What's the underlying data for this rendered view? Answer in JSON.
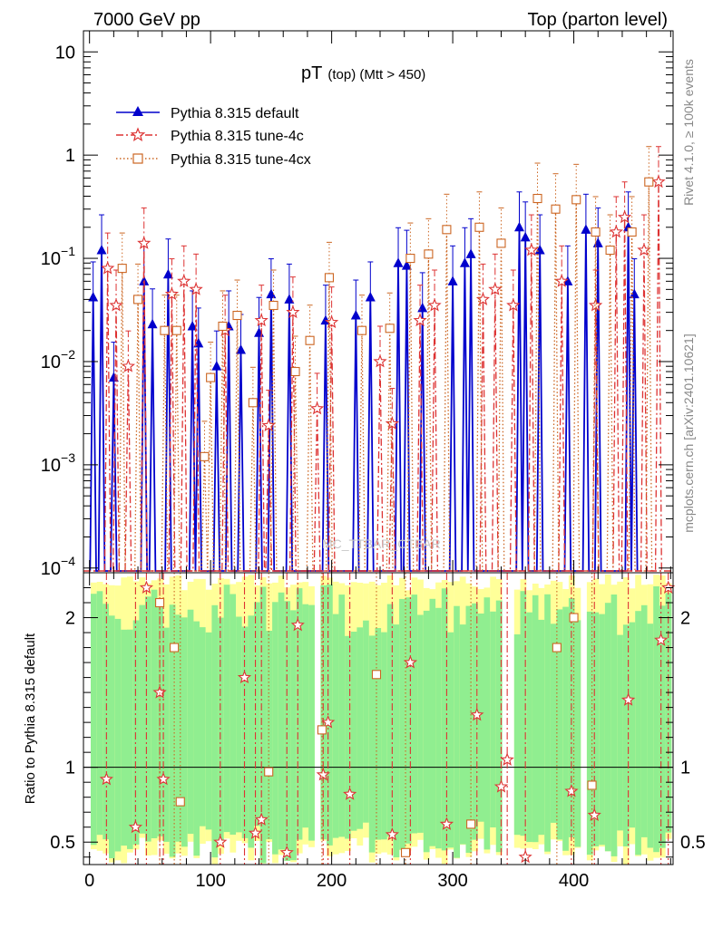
{
  "header": {
    "left": "7000 GeV pp",
    "right": "Top (parton level)"
  },
  "side_text": {
    "rivet": "Rivet 4.1.0, ≥ 100k events",
    "mcplots": "mcplots.cern.ch [arXiv:2401.10621]"
  },
  "watermark": "MC_TTBAR_CTBAR",
  "colors": {
    "default": "#0000cc",
    "tune4c": "#dd3333",
    "tune4cx": "#cc6622",
    "band_green": "#90ee90",
    "band_yellow": "#ffff99"
  },
  "chart_data": [
    {
      "id": "main",
      "type": "line",
      "title": "pT (top) (Mtt > 450)",
      "title_main": "pT",
      "title_sub": "(top) (Mtt > 450)",
      "xlabel": "",
      "ylabel": "",
      "yscale": "log",
      "xlim": [
        -5,
        482
      ],
      "ylim": [
        9e-05,
        16
      ],
      "x_ticks": [
        0,
        100,
        200,
        300,
        400
      ],
      "y_ticks": [
        {
          "value": 10,
          "base": "10",
          "exp": ""
        },
        {
          "value": 1,
          "base": "1",
          "exp": ""
        },
        {
          "value": 0.1,
          "base": "10",
          "exp": "−1"
        },
        {
          "value": 0.01,
          "base": "10",
          "exp": "−2"
        },
        {
          "value": 0.001,
          "base": "10",
          "exp": "−3"
        },
        {
          "value": 0.0001,
          "base": "10",
          "exp": "−4"
        }
      ],
      "legend_position": "top-left",
      "series": [
        {
          "name": "Pythia 8.315 default",
          "marker": "triangle",
          "points": [
            [
              3,
              0.042
            ],
            [
              10,
              0.12
            ],
            [
              20,
              0.007
            ],
            [
              45,
              0.06
            ],
            [
              52,
              0.023
            ],
            [
              65,
              0.07
            ],
            [
              85,
              0.022
            ],
            [
              90,
              0.015
            ],
            [
              105,
              0.009
            ],
            [
              115,
              0.022
            ],
            [
              125,
              0.013
            ],
            [
              140,
              0.019
            ],
            [
              150,
              0.045
            ],
            [
              165,
              0.04
            ],
            [
              195,
              0.025
            ],
            [
              220,
              0.028
            ],
            [
              232,
              0.042
            ],
            [
              255,
              0.09
            ],
            [
              262,
              0.085
            ],
            [
              275,
              0.033
            ],
            [
              300,
              0.06
            ],
            [
              310,
              0.09
            ],
            [
              315,
              0.11
            ],
            [
              355,
              0.2
            ],
            [
              360,
              0.16
            ],
            [
              372,
              0.12
            ],
            [
              395,
              0.06
            ],
            [
              410,
              0.19
            ],
            [
              420,
              0.14
            ],
            [
              445,
              0.2
            ],
            [
              450,
              0.045
            ]
          ]
        },
        {
          "name": "Pythia 8.315 tune-4c",
          "marker": "star",
          "points": [
            [
              15,
              0.08
            ],
            [
              22,
              0.035
            ],
            [
              32,
              0.009
            ],
            [
              45,
              0.14
            ],
            [
              68,
              0.045
            ],
            [
              78,
              0.06
            ],
            [
              88,
              0.05
            ],
            [
              112,
              0.02
            ],
            [
              142,
              0.025
            ],
            [
              148,
              0.0024
            ],
            [
              168,
              0.03
            ],
            [
              188,
              0.0035
            ],
            [
              200,
              0.024
            ],
            [
              240,
              0.01
            ],
            [
              250,
              0.0025
            ],
            [
              273,
              0.025
            ],
            [
              285,
              0.035
            ],
            [
              325,
              0.04
            ],
            [
              335,
              0.05
            ],
            [
              350,
              0.035
            ],
            [
              365,
              0.12
            ],
            [
              390,
              0.06
            ],
            [
              418,
              0.035
            ],
            [
              435,
              0.18
            ],
            [
              442,
              0.25
            ],
            [
              458,
              0.12
            ],
            [
              470,
              0.55
            ]
          ]
        },
        {
          "name": "Pythia 8.315 tune-4cx",
          "marker": "square",
          "points": [
            [
              27,
              0.08
            ],
            [
              40,
              0.04
            ],
            [
              62,
              0.02
            ],
            [
              72,
              0.02
            ],
            [
              95,
              0.0012
            ],
            [
              100,
              0.007
            ],
            [
              110,
              0.022
            ],
            [
              122,
              0.028
            ],
            [
              135,
              0.004
            ],
            [
              152,
              0.035
            ],
            [
              170,
              0.008
            ],
            [
              182,
              0.016
            ],
            [
              198,
              0.065
            ],
            [
              225,
              0.02
            ],
            [
              248,
              0.021
            ],
            [
              265,
              0.1
            ],
            [
              280,
              0.11
            ],
            [
              295,
              0.19
            ],
            [
              322,
              0.2
            ],
            [
              340,
              0.14
            ],
            [
              370,
              0.38
            ],
            [
              385,
              0.3
            ],
            [
              402,
              0.37
            ],
            [
              418,
              0.18
            ],
            [
              430,
              0.12
            ],
            [
              448,
              0.18
            ],
            [
              462,
              0.55
            ]
          ]
        }
      ]
    },
    {
      "id": "ratio",
      "type": "line",
      "title": "",
      "xlabel": "",
      "ylabel": "Ratio to Pythia 8.315 default",
      "yscale": "linear",
      "xlim": [
        -5,
        482
      ],
      "ylim": [
        0.35,
        2.3
      ],
      "x_ticks": [
        0,
        100,
        200,
        300,
        400
      ],
      "y_ticks": [
        0.5,
        1,
        2
      ],
      "reference": 1.0,
      "bands": {
        "green": "MC statistical uncertainty",
        "yellow": "total uncertainty"
      },
      "series": [
        {
          "name": "Pythia 8.315 tune-4c",
          "marker": "star",
          "points": [
            [
              14,
              0.92
            ],
            [
              38,
              0.6
            ],
            [
              47,
              2.2
            ],
            [
              58,
              1.5
            ],
            [
              61,
              0.92
            ],
            [
              108,
              0.5
            ],
            [
              128,
              1.6
            ],
            [
              137,
              0.56
            ],
            [
              142,
              0.65
            ],
            [
              163,
              0.43
            ],
            [
              172,
              1.95
            ],
            [
              193,
              0.95
            ],
            [
              197,
              1.3
            ],
            [
              215,
              0.82
            ],
            [
              250,
              0.55
            ],
            [
              265,
              1.7
            ],
            [
              295,
              0.62
            ],
            [
              320,
              1.35
            ],
            [
              340,
              0.87
            ],
            [
              345,
              1.05
            ],
            [
              360,
              0.4
            ],
            [
              398,
              0.84
            ],
            [
              417,
              0.68
            ],
            [
              445,
              1.45
            ],
            [
              472,
              1.85
            ],
            [
              478,
              2.2
            ]
          ]
        },
        {
          "name": "Pythia 8.315 tune-4cx",
          "marker": "square",
          "points": [
            [
              58,
              2.1
            ],
            [
              70,
              1.8
            ],
            [
              75,
              0.77
            ],
            [
              148,
              0.97
            ],
            [
              192,
              1.25
            ],
            [
              237,
              1.62
            ],
            [
              261,
              0.43
            ],
            [
              315,
              0.62
            ],
            [
              386,
              1.8
            ],
            [
              400,
              2.0
            ],
            [
              415,
              0.88
            ]
          ]
        }
      ]
    }
  ]
}
